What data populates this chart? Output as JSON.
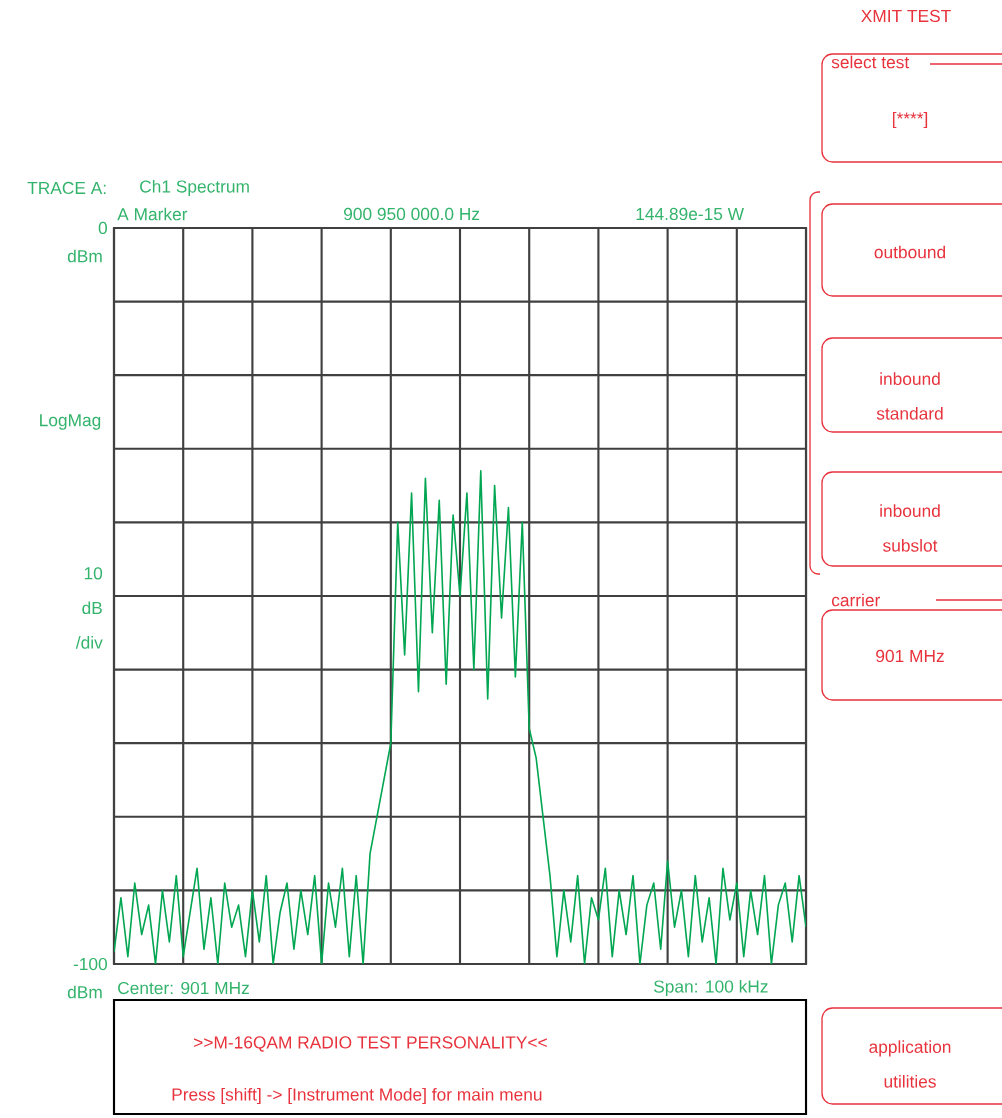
{
  "chart_data": {
    "type": "line",
    "ylabel": "LogMag",
    "categories": [
      null,
      null,
      null,
      null,
      null,
      null,
      null,
      null,
      null,
      null,
      null,
      null,
      null,
      null,
      null,
      null,
      null,
      null,
      null,
      null,
      null,
      null,
      null,
      null,
      null,
      null,
      null,
      null,
      null,
      null,
      null,
      null,
      null,
      null,
      null,
      null,
      null,
      null,
      null,
      null,
      null,
      null,
      null,
      null,
      null,
      null,
      null,
      null,
      null,
      null,
      null,
      null,
      null,
      null,
      null,
      null,
      null,
      null,
      null,
      null,
      null,
      null,
      null,
      null,
      null,
      null,
      null,
      null,
      null,
      null,
      null,
      null,
      null,
      null,
      null,
      null,
      null,
      null,
      null,
      null,
      null,
      null,
      null,
      null,
      null,
      null,
      null,
      null,
      null,
      null,
      null,
      null,
      null,
      null,
      null,
      null,
      null,
      null,
      null,
      null,
      null
    ],
    "series": [
      {
        "color": "#00a651",
        "values": [
          -98.4,
          -91,
          -99,
          -89,
          -96,
          -92,
          -100,
          -90,
          -97,
          -88,
          -99,
          -93,
          -87,
          -98,
          -91,
          -100,
          -89,
          -95,
          -92,
          -99,
          -90,
          -97,
          -88,
          -100,
          -93,
          -89,
          -98,
          -90,
          -96,
          -88,
          -100,
          -89,
          -95,
          -87,
          -99,
          -88,
          -100,
          -85,
          -80,
          -75,
          -70,
          -40,
          -58,
          -36,
          -63,
          -34,
          -55,
          -37,
          -62,
          -39,
          -50,
          -36,
          -60,
          -33,
          -64,
          -35,
          -53,
          -38,
          -61,
          -40,
          -68,
          -72,
          -80,
          -88,
          -99,
          -90,
          -97,
          -88,
          -100,
          -91,
          -94,
          -87,
          -99,
          -90,
          -96,
          -88,
          -100,
          -92,
          -89,
          -98,
          -86,
          -95,
          -90,
          -99,
          -88,
          -97,
          -91,
          -100,
          -87,
          -94,
          -89,
          -99,
          -90,
          -96,
          -88,
          -100,
          -92,
          -89,
          -97,
          -88,
          -95
        ]
      }
    ],
    "ylim": [
      -100,
      0
    ],
    "yticks": [
      {
        "value": 0,
        "label": "0"
      },
      {
        "value": -10,
        "label": null
      },
      {
        "value": -20,
        "label": null
      },
      {
        "value": -30,
        "label": null
      },
      {
        "value": -40,
        "label": null
      },
      {
        "value": -50,
        "label": null
      },
      {
        "value": -60,
        "label": null
      },
      {
        "value": -70,
        "label": null
      },
      {
        "value": -80,
        "label": null
      },
      {
        "value": -90,
        "label": null
      },
      {
        "value": -100,
        "label": "-100"
      }
    ],
    "tick_labels": "y",
    "grid": true,
    "annotations": [
      "TRACE A:",
      "Ch1 Spectrum",
      "A Marker",
      "900 950 000.0 Hz",
      "144.89e-15 W",
      "10 dB /div",
      "Center: 901 MHz",
      "Span: 100 kHz",
      ">>M-16QAM RADIO TEST PERSONALITY<<",
      "Press [shift] -> [Instrument Mode] for main menu",
      "XMIT TEST",
      "select test",
      "[****]",
      "outbound",
      "inbound standard",
      "inbound subslot",
      "carrier",
      "901 MHz",
      "application utilities",
      "dBm",
      "dBm"
    ]
  }
}
